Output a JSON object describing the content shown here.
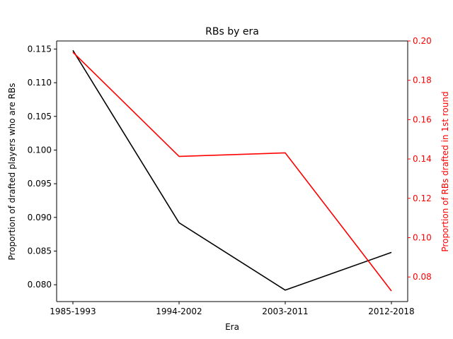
{
  "chart_data": {
    "type": "line",
    "title": "RBs by era",
    "xlabel": "Era",
    "categories": [
      "1985-1993",
      "1994-2002",
      "2003-2011",
      "2012-2018"
    ],
    "y_left": {
      "label": "Proportion of drafted players who are RBs",
      "ylim": [
        0.0775,
        0.1162
      ],
      "ticks": [
        "0.080",
        "0.085",
        "0.090",
        "0.095",
        "0.100",
        "0.105",
        "0.110",
        "0.115"
      ],
      "color": "#000000"
    },
    "y_right": {
      "label": "Proportion of RBs drafted in 1st round",
      "ylim": [
        0.0675,
        0.2
      ],
      "ticks": [
        "0.08",
        "0.10",
        "0.12",
        "0.14",
        "0.16",
        "0.18",
        "0.20"
      ],
      "color": "#ff0000"
    },
    "series": [
      {
        "axis": "left",
        "color": "#000000",
        "values": [
          0.1148,
          0.0892,
          0.0792,
          0.0848
        ]
      },
      {
        "axis": "right",
        "color": "#ff0000",
        "values": [
          0.1943,
          0.1413,
          0.1431,
          0.0729
        ]
      }
    ],
    "grid": false
  }
}
